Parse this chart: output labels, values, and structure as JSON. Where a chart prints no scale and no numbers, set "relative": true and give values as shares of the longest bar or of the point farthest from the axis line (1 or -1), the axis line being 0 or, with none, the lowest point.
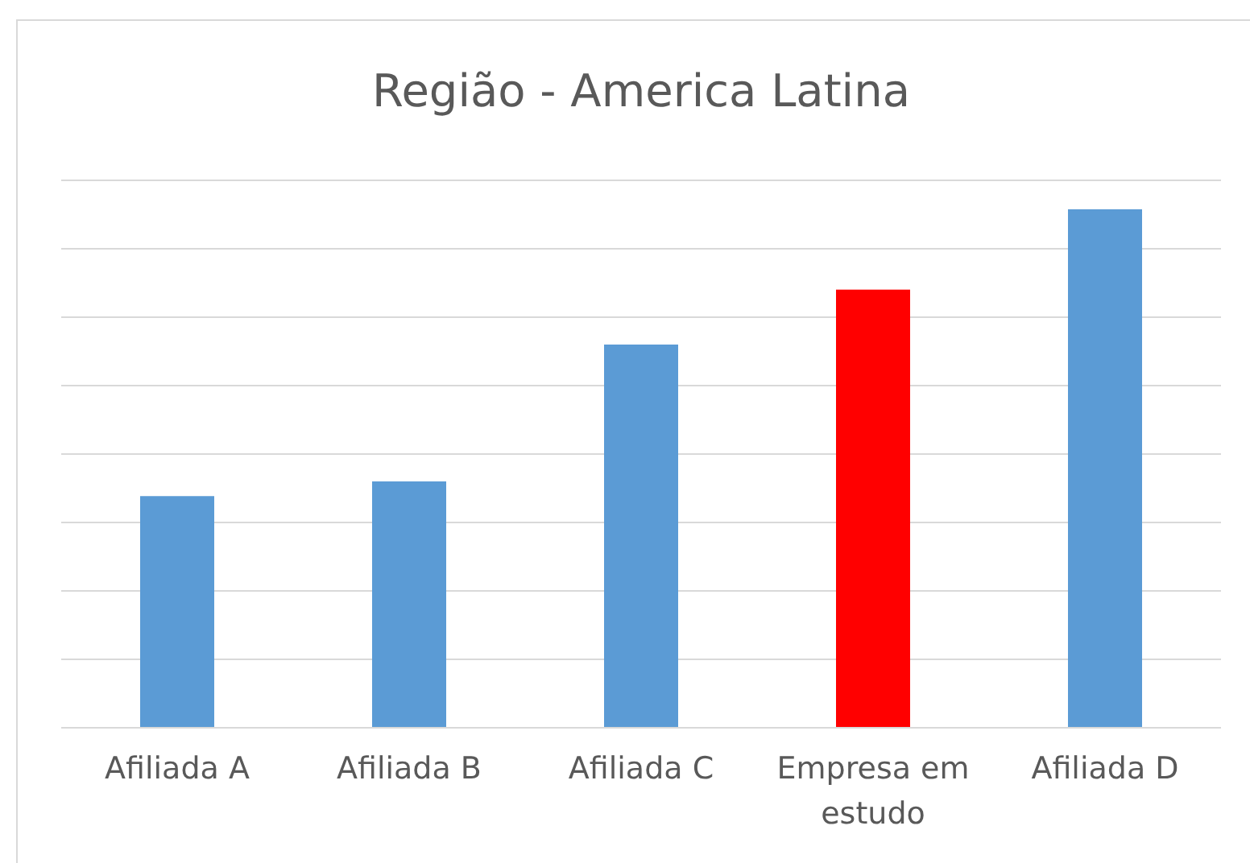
{
  "chart_data": {
    "type": "bar",
    "title": "Região - America Latina",
    "relative": true,
    "grid": "y",
    "categories": [
      "Afiliada A",
      "Afiliada B",
      "Afiliada C",
      "Empresa em estudo",
      "Afiliada D"
    ],
    "values": [
      0.447,
      0.475,
      0.739,
      0.845,
      1
    ],
    "colors": [
      "#5b9bd5",
      "#5b9bd5",
      "#5b9bd5",
      "#ff0000",
      "#5b9bd5"
    ]
  }
}
